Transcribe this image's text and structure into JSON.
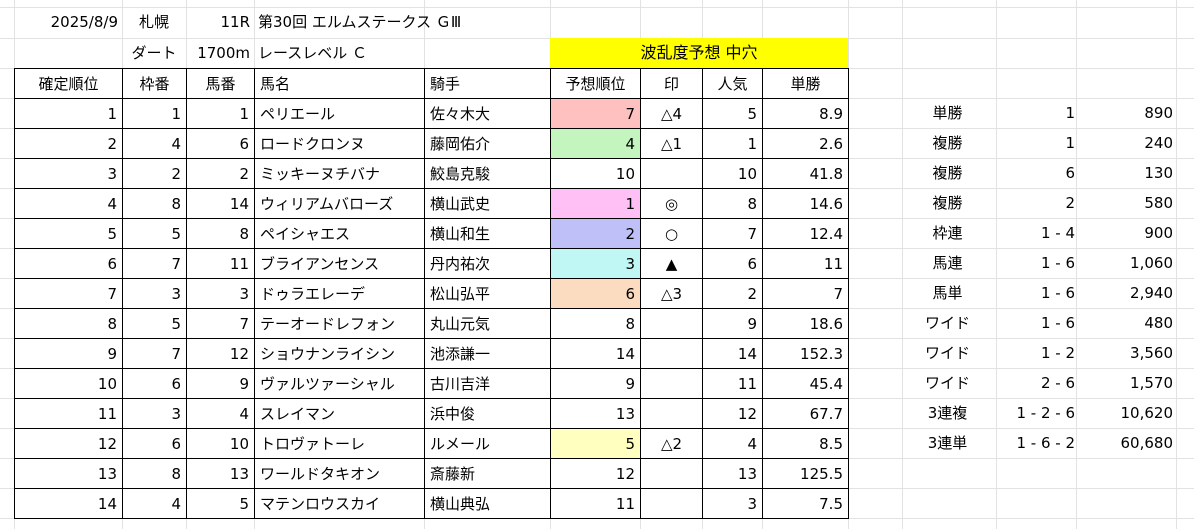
{
  "race": {
    "date": "2025/8/9",
    "venue": "札幌",
    "race_no": "11R",
    "race_name": "第30回 エルムステークス ＧⅢ",
    "surface": "ダート",
    "distance": "1700m",
    "level": "レースレベル Ｃ",
    "forecast": "波乱度予想 中穴"
  },
  "table": {
    "headers": [
      "確定順位",
      "枠番",
      "馬番",
      "馬名",
      "騎手",
      "予想順位",
      "印",
      "人気",
      "単勝"
    ],
    "rows": [
      {
        "rank": "1",
        "waku": "1",
        "uma": "1",
        "name": "ペリエール",
        "jockey": "佐々木大",
        "pred": "7",
        "mark": "△4",
        "pop": "5",
        "odds": "8.9",
        "color": "#ffc0c0"
      },
      {
        "rank": "2",
        "waku": "4",
        "uma": "6",
        "name": "ロードクロンヌ",
        "jockey": "藤岡佑介",
        "pred": "4",
        "mark": "△1",
        "pop": "1",
        "odds": "2.6",
        "color": "#c4f5bf"
      },
      {
        "rank": "3",
        "waku": "2",
        "uma": "2",
        "name": "ミッキーヌチバナ",
        "jockey": "鮫島克駿",
        "pred": "10",
        "mark": "",
        "pop": "10",
        "odds": "41.8",
        "color": ""
      },
      {
        "rank": "4",
        "waku": "8",
        "uma": "14",
        "name": "ウィリアムバローズ",
        "jockey": "横山武史",
        "pred": "1",
        "mark": "◎",
        "pop": "8",
        "odds": "14.6",
        "color": "#ffc0f5"
      },
      {
        "rank": "5",
        "waku": "5",
        "uma": "8",
        "name": "ペイシャエス",
        "jockey": "横山和生",
        "pred": "2",
        "mark": "○",
        "pop": "7",
        "odds": "12.4",
        "color": "#c0c0f8"
      },
      {
        "rank": "6",
        "waku": "7",
        "uma": "11",
        "name": "ブライアンセンス",
        "jockey": "丹内祐次",
        "pred": "3",
        "mark": "▲",
        "pop": "6",
        "odds": "11",
        "color": "#c0f7f5"
      },
      {
        "rank": "7",
        "waku": "3",
        "uma": "3",
        "name": "ドゥラエレーデ",
        "jockey": "松山弘平",
        "pred": "6",
        "mark": "△3",
        "pop": "2",
        "odds": "7",
        "color": "#fcdcc0"
      },
      {
        "rank": "8",
        "waku": "5",
        "uma": "7",
        "name": "テーオードレフォン",
        "jockey": "丸山元気",
        "pred": "8",
        "mark": "",
        "pop": "9",
        "odds": "18.6",
        "color": ""
      },
      {
        "rank": "9",
        "waku": "7",
        "uma": "12",
        "name": "ショウナンライシン",
        "jockey": "池添謙一",
        "pred": "14",
        "mark": "",
        "pop": "14",
        "odds": "152.3",
        "color": ""
      },
      {
        "rank": "10",
        "waku": "6",
        "uma": "9",
        "name": "ヴァルツァーシャル",
        "jockey": "古川吉洋",
        "pred": "9",
        "mark": "",
        "pop": "11",
        "odds": "45.4",
        "color": ""
      },
      {
        "rank": "11",
        "waku": "3",
        "uma": "4",
        "name": "スレイマン",
        "jockey": "浜中俊",
        "pred": "13",
        "mark": "",
        "pop": "12",
        "odds": "67.7",
        "color": ""
      },
      {
        "rank": "12",
        "waku": "6",
        "uma": "10",
        "name": "トロヴァトーレ",
        "jockey": "ルメール",
        "pred": "5",
        "mark": "△2",
        "pop": "4",
        "odds": "8.5",
        "color": "#ffffc0"
      },
      {
        "rank": "13",
        "waku": "8",
        "uma": "13",
        "name": "ワールドタキオン",
        "jockey": "斎藤新",
        "pred": "12",
        "mark": "",
        "pop": "13",
        "odds": "125.5",
        "color": ""
      },
      {
        "rank": "14",
        "waku": "4",
        "uma": "5",
        "name": "マテンロウスカイ",
        "jockey": "横山典弘",
        "pred": "11",
        "mark": "",
        "pop": "3",
        "odds": "7.5",
        "color": ""
      }
    ]
  },
  "payouts": [
    {
      "type": "単勝",
      "combo": "1",
      "amount": "890"
    },
    {
      "type": "複勝",
      "combo": "1",
      "amount": "240"
    },
    {
      "type": "複勝",
      "combo": "6",
      "amount": "130"
    },
    {
      "type": "複勝",
      "combo": "2",
      "amount": "580"
    },
    {
      "type": "枠連",
      "combo": "1 - 4",
      "amount": "900"
    },
    {
      "type": "馬連",
      "combo": "1 - 6",
      "amount": "1,060"
    },
    {
      "type": "馬単",
      "combo": "1 - 6",
      "amount": "2,940"
    },
    {
      "type": "ワイド",
      "combo": "1 - 6",
      "amount": "480"
    },
    {
      "type": "ワイド",
      "combo": "1 - 2",
      "amount": "3,560"
    },
    {
      "type": "ワイド",
      "combo": "2 - 6",
      "amount": "1,570"
    },
    {
      "type": "3連複",
      "combo": "1 - 2 - 6",
      "amount": "10,620"
    },
    {
      "type": "3連単",
      "combo": "1 - 6 - 2",
      "amount": "60,680"
    }
  ]
}
